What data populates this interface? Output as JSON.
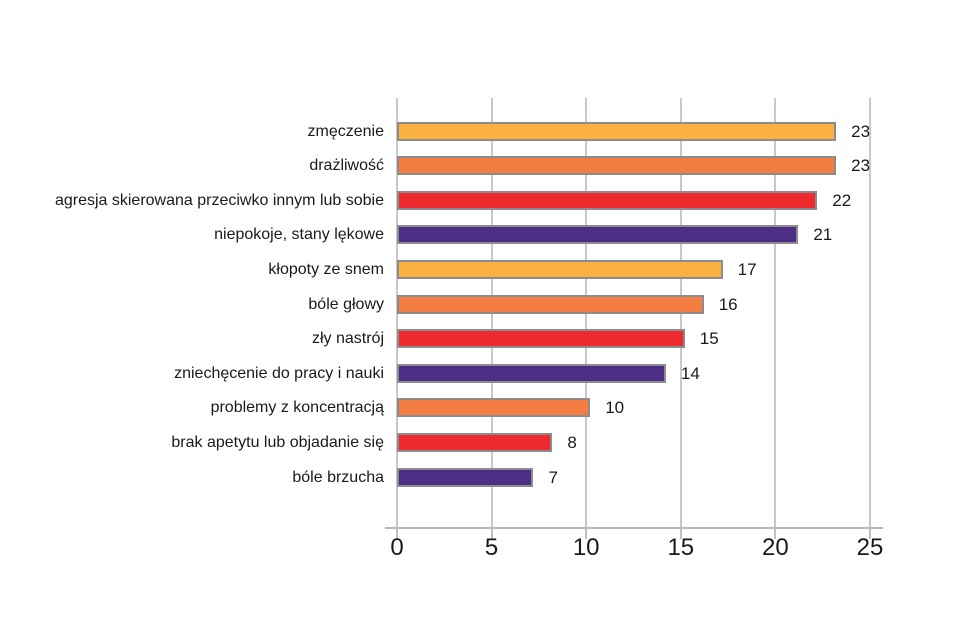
{
  "chart_data": {
    "type": "bar",
    "orientation": "horizontal",
    "title": "",
    "xlabel": "",
    "ylabel": "",
    "categories": [
      "zmęczenie",
      "drażliwość",
      "agresja skierowana przeciwko innym lub sobie",
      "niepokoje, stany lękowe",
      "kłopoty ze snem",
      "bóle głowy",
      "zły nastrój",
      "zniechęcenie do pracy i nauki",
      "problemy z koncentracją",
      "brak apetytu lub objadanie się",
      "bóle brzucha"
    ],
    "values": [
      23,
      23,
      22,
      21,
      17,
      16,
      15,
      14,
      10,
      8,
      7
    ],
    "value_labels": [
      "23",
      "23",
      "22",
      "21",
      "17",
      "16",
      "15",
      "14",
      "10",
      "8",
      "7"
    ],
    "bar_colors": [
      "#FBB042",
      "#F47D41",
      "#EE2A2F",
      "#4D2E87",
      "#FBB042",
      "#F47D41",
      "#EE2A2F",
      "#4D2E87",
      "#F47D41",
      "#EE2A2F",
      "#4D2E87"
    ],
    "xlim": [
      0,
      25
    ],
    "x_ticks": [
      0,
      5,
      10,
      15,
      20,
      25
    ],
    "x_tick_labels": [
      "0",
      "5",
      "10",
      "15",
      "20",
      "25"
    ],
    "grid": true,
    "legend": false,
    "colors": {
      "bar_border": "#8C8C8C",
      "gridline": "#C9C9C9",
      "axis": "#B9B9B9",
      "text": "#1A1A1A",
      "background": "#FFFFFF"
    }
  }
}
